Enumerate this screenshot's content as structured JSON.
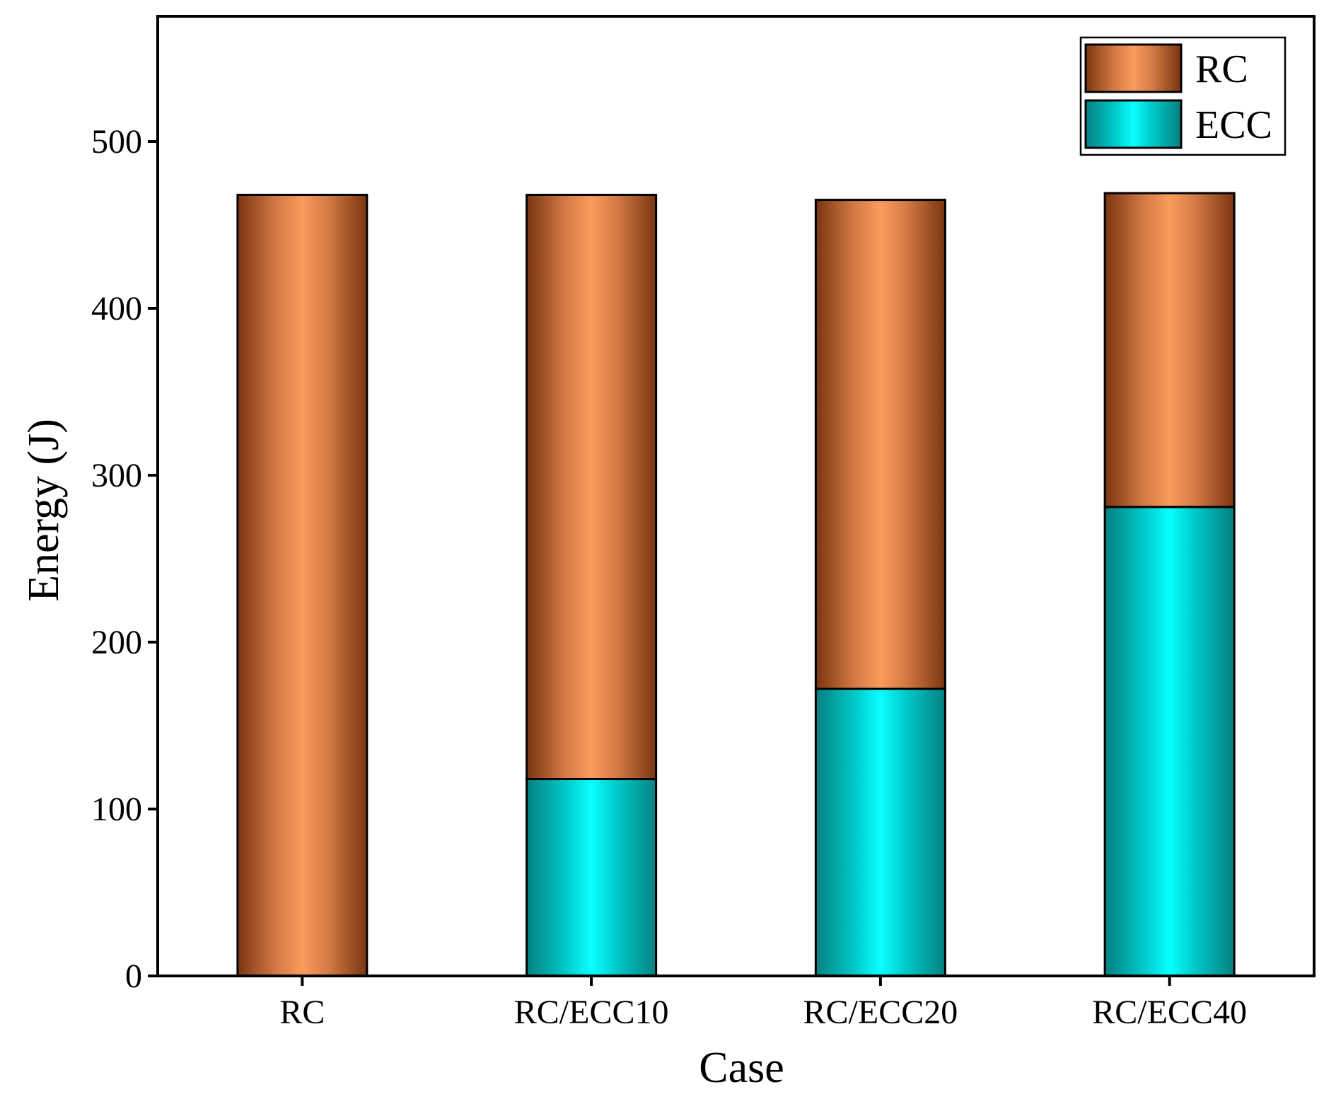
{
  "chart_data": {
    "type": "bar",
    "stacked": true,
    "title": "",
    "xlabel": "Case",
    "ylabel": "Energy (J)",
    "categories": [
      "RC",
      "RC/ECC10",
      "RC/ECC20",
      "RC/ECC40"
    ],
    "series": [
      {
        "name": "ECC",
        "values": [
          0,
          118,
          172,
          281
        ],
        "color": "#00e5e5"
      },
      {
        "name": "RC",
        "values": [
          468,
          350,
          293,
          188
        ],
        "color": "#f5935a"
      }
    ],
    "ylim": [
      0,
      575
    ],
    "yticks": [
      0,
      100,
      200,
      300,
      400,
      500
    ],
    "ytick_labels": [
      "0",
      "100",
      "200",
      "300",
      "400",
      "500"
    ],
    "grid": false,
    "legend": {
      "position": "top-right",
      "entries": [
        {
          "label": "RC",
          "series": "RC"
        },
        {
          "label": "ECC",
          "series": "ECC"
        }
      ]
    }
  }
}
